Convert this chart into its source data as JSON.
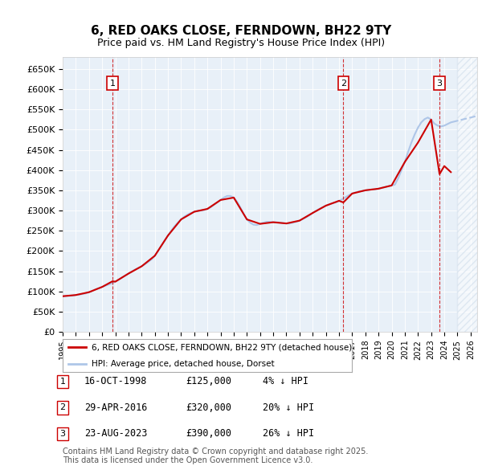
{
  "title": "6, RED OAKS CLOSE, FERNDOWN, BH22 9TY",
  "subtitle": "Price paid vs. HM Land Registry's House Price Index (HPI)",
  "hpi_color": "#aec6e8",
  "price_color": "#cc0000",
  "sale_marker_color": "#cc0000",
  "dashed_line_color": "#cc0000",
  "background_color": "#e8f0f8",
  "plot_bg_color": "#e8f0f8",
  "hatch_color": "#c8d8e8",
  "ylim": [
    0,
    680000
  ],
  "yticks": [
    0,
    50000,
    100000,
    150000,
    200000,
    250000,
    300000,
    350000,
    400000,
    450000,
    500000,
    550000,
    600000,
    650000
  ],
  "xlim_start": 1995.0,
  "xlim_end": 2026.5,
  "xticks": [
    1995,
    1996,
    1997,
    1998,
    1999,
    2000,
    2001,
    2002,
    2003,
    2004,
    2005,
    2006,
    2007,
    2008,
    2009,
    2010,
    2011,
    2012,
    2013,
    2014,
    2015,
    2016,
    2017,
    2018,
    2019,
    2020,
    2021,
    2022,
    2023,
    2024,
    2025,
    2026
  ],
  "sales": [
    {
      "num": 1,
      "date": "16-OCT-1998",
      "price": 125000,
      "year": 1998.79,
      "hpi_pct": "4% ↓ HPI"
    },
    {
      "num": 2,
      "date": "29-APR-2016",
      "price": 320000,
      "year": 2016.33,
      "hpi_pct": "20% ↓ HPI"
    },
    {
      "num": 3,
      "date": "23-AUG-2023",
      "price": 390000,
      "year": 2023.64,
      "hpi_pct": "26% ↓ HPI"
    }
  ],
  "legend_label_red": "6, RED OAKS CLOSE, FERNDOWN, BH22 9TY (detached house)",
  "legend_label_blue": "HPI: Average price, detached house, Dorset",
  "footer": "Contains HM Land Registry data © Crown copyright and database right 2025.\nThis data is licensed under the Open Government Licence v3.0.",
  "hpi_data": {
    "years": [
      1995.0,
      1995.25,
      1995.5,
      1995.75,
      1996.0,
      1996.25,
      1996.5,
      1996.75,
      1997.0,
      1997.25,
      1997.5,
      1997.75,
      1998.0,
      1998.25,
      1998.5,
      1998.75,
      1999.0,
      1999.25,
      1999.5,
      1999.75,
      2000.0,
      2000.25,
      2000.5,
      2000.75,
      2001.0,
      2001.25,
      2001.5,
      2001.75,
      2002.0,
      2002.25,
      2002.5,
      2002.75,
      2003.0,
      2003.25,
      2003.5,
      2003.75,
      2004.0,
      2004.25,
      2004.5,
      2004.75,
      2005.0,
      2005.25,
      2005.5,
      2005.75,
      2006.0,
      2006.25,
      2006.5,
      2006.75,
      2007.0,
      2007.25,
      2007.5,
      2007.75,
      2008.0,
      2008.25,
      2008.5,
      2008.75,
      2009.0,
      2009.25,
      2009.5,
      2009.75,
      2010.0,
      2010.25,
      2010.5,
      2010.75,
      2011.0,
      2011.25,
      2011.5,
      2011.75,
      2012.0,
      2012.25,
      2012.5,
      2012.75,
      2013.0,
      2013.25,
      2013.5,
      2013.75,
      2014.0,
      2014.25,
      2014.5,
      2014.75,
      2015.0,
      2015.25,
      2015.5,
      2015.75,
      2016.0,
      2016.25,
      2016.5,
      2016.75,
      2017.0,
      2017.25,
      2017.5,
      2017.75,
      2018.0,
      2018.25,
      2018.5,
      2018.75,
      2019.0,
      2019.25,
      2019.5,
      2019.75,
      2020.0,
      2020.25,
      2020.5,
      2020.75,
      2021.0,
      2021.25,
      2021.5,
      2021.75,
      2022.0,
      2022.25,
      2022.5,
      2022.75,
      2023.0,
      2023.25,
      2023.5,
      2023.75,
      2024.0,
      2024.25,
      2024.5,
      2024.75,
      2025.0
    ],
    "values": [
      88000,
      88500,
      89000,
      89500,
      91000,
      92000,
      93500,
      95000,
      98000,
      101000,
      105000,
      108000,
      111000,
      114000,
      117000,
      120000,
      124000,
      129000,
      134000,
      139000,
      144000,
      149000,
      154000,
      158000,
      162000,
      167000,
      173000,
      179000,
      188000,
      200000,
      213000,
      226000,
      238000,
      250000,
      261000,
      270000,
      278000,
      285000,
      290000,
      294000,
      297000,
      299000,
      300000,
      301000,
      304000,
      308000,
      314000,
      320000,
      326000,
      332000,
      336000,
      336000,
      332000,
      322000,
      308000,
      292000,
      278000,
      270000,
      265000,
      264000,
      267000,
      270000,
      272000,
      272000,
      271000,
      271000,
      270000,
      269000,
      268000,
      268000,
      270000,
      272000,
      275000,
      279000,
      283000,
      288000,
      294000,
      299000,
      304000,
      308000,
      312000,
      315000,
      318000,
      320000,
      324000,
      328000,
      333000,
      338000,
      342000,
      345000,
      347000,
      348000,
      350000,
      351000,
      352000,
      352000,
      354000,
      356000,
      358000,
      360000,
      362000,
      364000,
      380000,
      400000,
      420000,
      445000,
      468000,
      488000,
      505000,
      518000,
      526000,
      530000,
      525000,
      515000,
      510000,
      508000,
      510000,
      514000,
      518000,
      520000,
      522000
    ],
    "future_years": [
      2025.25,
      2025.5,
      2025.75,
      2026.0,
      2026.25,
      2026.5
    ],
    "future_values": [
      524000,
      526000,
      528000,
      530000,
      532000,
      534000
    ]
  },
  "price_data": {
    "years": [
      1995.0,
      1996.0,
      1997.0,
      1998.0,
      1998.79,
      1999.0,
      2000.0,
      2001.0,
      2002.0,
      2003.0,
      2004.0,
      2005.0,
      2006.0,
      2007.0,
      2008.0,
      2009.0,
      2010.0,
      2011.0,
      2012.0,
      2013.0,
      2014.0,
      2015.0,
      2016.0,
      2016.33,
      2017.0,
      2018.0,
      2019.0,
      2020.0,
      2021.0,
      2022.0,
      2023.0,
      2023.64,
      2024.0,
      2024.5
    ],
    "values": [
      88000,
      91000,
      98000,
      111000,
      125000,
      124000,
      144000,
      162000,
      188000,
      238000,
      278000,
      297000,
      304000,
      326000,
      332000,
      278000,
      267000,
      271000,
      268000,
      275000,
      294000,
      312000,
      324000,
      320000,
      342000,
      350000,
      354000,
      362000,
      420000,
      468000,
      525000,
      390000,
      410000,
      395000
    ]
  }
}
